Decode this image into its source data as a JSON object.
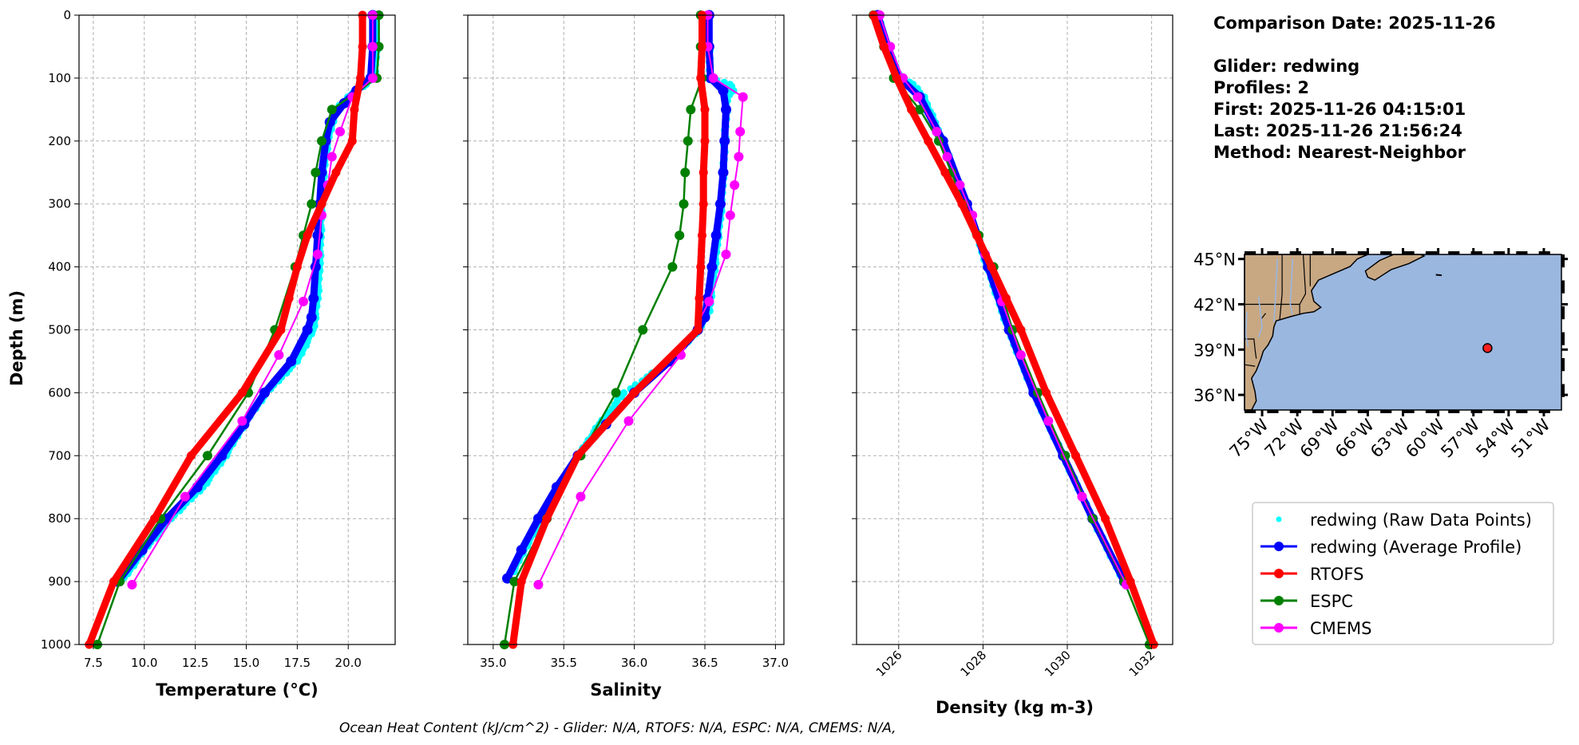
{
  "info": {
    "lines": [
      "Comparison Date: 2025-11-26",
      "",
      "Glider: redwing",
      "Profiles: 2",
      "First: 2025-11-26 04:15:01",
      "Last: 2025-11-26 21:56:24",
      "Method: Nearest-Neighbor"
    ]
  },
  "footer": "Ocean Heat Content (kJ/cm^2) - Glider: N/A,  RTOFS: N/A,  ESPC: N/A,  CMEMS: N/A,",
  "colors": {
    "raw": "#00ffff",
    "average": "#0000ff",
    "rtofs": "#ff0000",
    "espc": "#008000",
    "cmems": "#ff00ff",
    "land": "#c8a883",
    "ocean": "#9ab7e0"
  },
  "legend": [
    {
      "label": "redwing (Raw Data Points)",
      "key": "raw",
      "style": "dot"
    },
    {
      "label": "redwing (Average Profile)",
      "key": "average",
      "style": "line"
    },
    {
      "label": "RTOFS",
      "key": "rtofs",
      "style": "line"
    },
    {
      "label": "ESPC",
      "key": "espc",
      "style": "line"
    },
    {
      "label": "CMEMS",
      "key": "cmems",
      "style": "line"
    }
  ],
  "chart_data": [
    {
      "type": "line",
      "xlabel": "Temperature (°C)",
      "ylabel": "Depth (m)",
      "xlim": [
        6.8,
        22.3
      ],
      "ylim": [
        1000,
        0
      ],
      "xticks": [
        7.5,
        10.0,
        12.5,
        15.0,
        17.5,
        20.0
      ],
      "xtick_labels": [
        "7.5",
        "10.0",
        "12.5",
        "15.0",
        "17.5",
        "20.0"
      ],
      "yticks": [
        0,
        100,
        200,
        300,
        400,
        500,
        600,
        700,
        800,
        900,
        1000
      ],
      "grid": true,
      "series": [
        {
          "name": "redwing (Raw Data Points)",
          "key": "raw",
          "depth": [
            0,
            50,
            90,
            110,
            120,
            130,
            150,
            200,
            250,
            300,
            400,
            450,
            500,
            550,
            600,
            650,
            700,
            750,
            800,
            850,
            900
          ],
          "values": [
            21.3,
            21.4,
            21.3,
            20.9,
            20.4,
            20.0,
            19.4,
            19.0,
            18.8,
            18.7,
            18.6,
            18.5,
            18.3,
            17.5,
            16.0,
            14.9,
            14.0,
            12.9,
            11.3,
            10.0,
            8.9
          ]
        },
        {
          "name": "redwing (Average Profile)",
          "key": "average",
          "depth": [
            0,
            50,
            100,
            120,
            140,
            170,
            200,
            250,
            300,
            350,
            400,
            450,
            480,
            500,
            550,
            600,
            650,
            700,
            750,
            800,
            850,
            900
          ],
          "values": [
            21.2,
            21.2,
            21.1,
            20.4,
            19.8,
            19.1,
            18.9,
            18.7,
            18.6,
            18.5,
            18.4,
            18.3,
            18.2,
            18.0,
            17.2,
            15.9,
            14.9,
            13.8,
            12.6,
            11.1,
            9.9,
            8.7
          ]
        },
        {
          "name": "RTOFS",
          "key": "rtofs",
          "depth": [
            0,
            50,
            100,
            150,
            200,
            250,
            300,
            350,
            400,
            450,
            500,
            600,
            700,
            800,
            900,
            1000
          ],
          "values": [
            20.7,
            20.7,
            20.6,
            20.3,
            20.2,
            19.4,
            18.7,
            18.0,
            17.5,
            17.1,
            16.7,
            14.8,
            12.3,
            10.5,
            8.5,
            7.3
          ]
        },
        {
          "name": "ESPC",
          "key": "espc",
          "depth": [
            0,
            50,
            100,
            150,
            200,
            250,
            300,
            350,
            400,
            500,
            600,
            700,
            800,
            900,
            1000
          ],
          "values": [
            21.5,
            21.5,
            21.4,
            19.2,
            18.7,
            18.4,
            18.2,
            17.8,
            17.4,
            16.4,
            15.1,
            13.1,
            10.8,
            8.8,
            7.7
          ]
        },
        {
          "name": "CMEMS",
          "key": "cmems",
          "depth": [
            0,
            50,
            100,
            130,
            185,
            225,
            270,
            318,
            380,
            455,
            540,
            645,
            765,
            905
          ],
          "values": [
            21.2,
            21.2,
            21.2,
            20.2,
            19.6,
            19.2,
            19.0,
            18.7,
            18.5,
            17.8,
            16.6,
            14.8,
            12.0,
            9.4
          ]
        }
      ]
    },
    {
      "type": "line",
      "xlabel": "Salinity",
      "ylabel": "",
      "xlim": [
        34.82,
        37.06
      ],
      "ylim": [
        1000,
        0
      ],
      "xticks": [
        35.0,
        35.5,
        36.0,
        36.5,
        37.0
      ],
      "xtick_labels": [
        "35.0",
        "35.5",
        "36.0",
        "36.5",
        "37.0"
      ],
      "yticks": [
        0,
        100,
        200,
        300,
        400,
        500,
        600,
        700,
        800,
        900,
        1000
      ],
      "grid": true,
      "series": [
        {
          "name": "redwing (Raw Data Points)",
          "key": "raw",
          "depth": [
            0,
            50,
            100,
            110,
            120,
            130,
            200,
            300,
            400,
            470,
            500,
            550,
            600,
            650,
            700,
            750,
            800,
            850,
            890
          ],
          "values": [
            36.52,
            36.53,
            36.54,
            36.68,
            36.7,
            36.66,
            36.64,
            36.62,
            36.57,
            36.53,
            36.46,
            36.25,
            35.93,
            35.75,
            35.6,
            35.46,
            35.35,
            35.22,
            35.13
          ]
        },
        {
          "name": "redwing (Average Profile)",
          "key": "average",
          "depth": [
            0,
            50,
            100,
            120,
            150,
            200,
            250,
            300,
            350,
            400,
            450,
            480,
            500,
            550,
            600,
            650,
            700,
            750,
            800,
            850,
            895
          ],
          "values": [
            36.53,
            36.53,
            36.54,
            36.63,
            36.65,
            36.64,
            36.63,
            36.61,
            36.58,
            36.55,
            36.52,
            36.5,
            36.45,
            36.25,
            36.0,
            35.8,
            35.6,
            35.45,
            35.32,
            35.2,
            35.1
          ]
        },
        {
          "name": "RTOFS",
          "key": "rtofs",
          "depth": [
            0,
            50,
            100,
            150,
            200,
            250,
            300,
            350,
            400,
            450,
            500,
            600,
            700,
            800,
            900,
            1000
          ],
          "values": [
            36.48,
            36.48,
            36.47,
            36.5,
            36.5,
            36.49,
            36.49,
            36.48,
            36.47,
            36.46,
            36.45,
            36.0,
            35.6,
            35.38,
            35.2,
            35.14
          ]
        },
        {
          "name": "ESPC",
          "key": "espc",
          "depth": [
            0,
            50,
            100,
            150,
            200,
            250,
            300,
            350,
            400,
            500,
            600,
            700,
            800,
            900,
            1000
          ],
          "values": [
            36.47,
            36.47,
            36.48,
            36.4,
            36.38,
            36.36,
            36.35,
            36.32,
            36.27,
            36.06,
            35.87,
            35.62,
            35.38,
            35.15,
            35.08
          ]
        },
        {
          "name": "CMEMS",
          "key": "cmems",
          "depth": [
            0,
            50,
            100,
            130,
            185,
            225,
            270,
            318,
            380,
            455,
            540,
            645,
            765,
            905
          ],
          "values": [
            36.52,
            36.52,
            36.56,
            36.77,
            36.75,
            36.74,
            36.71,
            36.68,
            36.65,
            36.53,
            36.33,
            35.96,
            35.62,
            35.32
          ]
        }
      ]
    },
    {
      "type": "line",
      "xlabel": "Density (kg m-3)",
      "ylabel": "",
      "xlim": [
        1025.0,
        1032.5
      ],
      "ylim": [
        1000,
        0
      ],
      "xticks": [
        1026,
        1028,
        1030,
        1032
      ],
      "xtick_labels": [
        "1026",
        "1028",
        "1030",
        "1032"
      ],
      "yticks": [
        0,
        100,
        200,
        300,
        400,
        500,
        600,
        700,
        800,
        900,
        1000
      ],
      "grid": true,
      "series": [
        {
          "name": "redwing (Raw Data Points)",
          "key": "raw",
          "depth": [
            0,
            50,
            100,
            110,
            130,
            200,
            300,
            400,
            500,
            600,
            700,
            800,
            895
          ],
          "values": [
            1025.5,
            1025.72,
            1026.05,
            1026.35,
            1026.6,
            1027.05,
            1027.6,
            1028.1,
            1028.6,
            1029.2,
            1029.9,
            1030.6,
            1031.3
          ]
        },
        {
          "name": "redwing (Average Profile)",
          "key": "average",
          "depth": [
            0,
            50,
            100,
            130,
            200,
            300,
            400,
            500,
            600,
            700,
            800,
            900
          ],
          "values": [
            1025.5,
            1025.74,
            1026.02,
            1026.5,
            1027.05,
            1027.62,
            1028.12,
            1028.62,
            1029.2,
            1029.9,
            1030.6,
            1031.35
          ]
        },
        {
          "name": "RTOFS",
          "key": "rtofs",
          "depth": [
            0,
            50,
            100,
            150,
            200,
            250,
            300,
            350,
            400,
            450,
            500,
            600,
            700,
            800,
            900,
            1000
          ],
          "values": [
            1025.4,
            1025.65,
            1025.95,
            1026.3,
            1026.7,
            1027.1,
            1027.5,
            1027.85,
            1028.2,
            1028.55,
            1028.9,
            1029.5,
            1030.2,
            1030.9,
            1031.5,
            1032.05
          ]
        },
        {
          "name": "ESPC",
          "key": "espc",
          "depth": [
            0,
            50,
            100,
            150,
            200,
            250,
            300,
            350,
            400,
            500,
            600,
            700,
            800,
            900,
            1000
          ],
          "values": [
            1025.4,
            1025.65,
            1025.88,
            1026.5,
            1026.95,
            1027.25,
            1027.55,
            1027.9,
            1028.25,
            1028.7,
            1029.3,
            1029.95,
            1030.6,
            1031.35,
            1031.95
          ]
        },
        {
          "name": "CMEMS",
          "key": "cmems",
          "depth": [
            0,
            50,
            100,
            130,
            185,
            225,
            270,
            318,
            380,
            455,
            540,
            645,
            765,
            905
          ],
          "values": [
            1025.55,
            1025.8,
            1026.1,
            1026.45,
            1026.9,
            1027.15,
            1027.45,
            1027.75,
            1028.05,
            1028.45,
            1028.9,
            1029.55,
            1030.35,
            1031.4
          ]
        }
      ]
    }
  ],
  "map": {
    "lon_range": [
      -76.5,
      -49.5
    ],
    "lat_range": [
      35.0,
      45.3
    ],
    "xtick_labels": [
      "75°W",
      "72°W",
      "69°W",
      "66°W",
      "63°W",
      "60°W",
      "57°W",
      "54°W",
      "51°W"
    ],
    "xtick_lons": [
      -75,
      -72,
      -69,
      -66,
      -63,
      -60,
      -57,
      -54,
      -51
    ],
    "ytick_labels": [
      "45°N",
      "42°N",
      "39°N",
      "36°N"
    ],
    "ytick_lats": [
      45,
      42,
      39,
      36
    ],
    "glider_position": {
      "lon": -55.8,
      "lat": 39.1
    }
  }
}
